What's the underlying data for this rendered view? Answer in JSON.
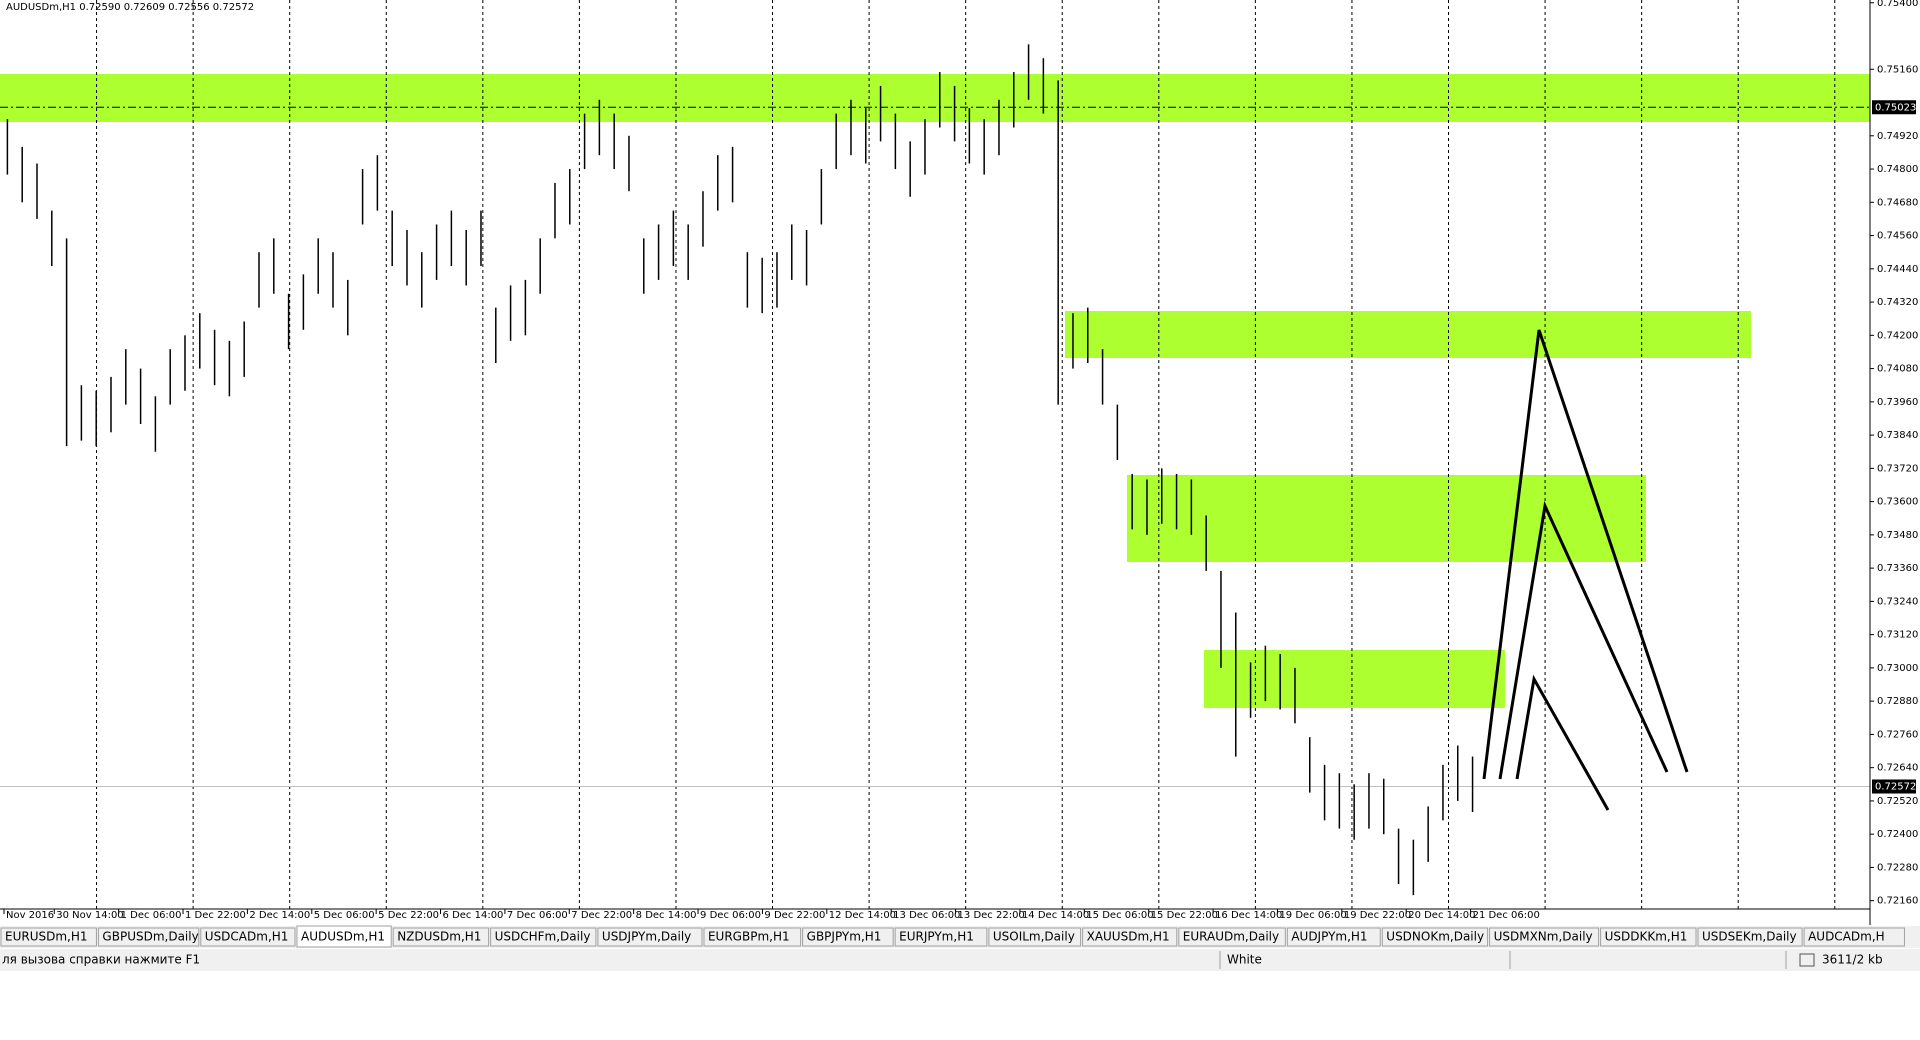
{
  "window": {
    "header": "AUDUSDm,H1  0.72590 0.72609 0.72556 0.72572",
    "tabs": [
      "EURUSDm,H1",
      "GBPUSDm,Daily",
      "USDCADm,H1",
      "AUDUSDm,H1",
      "NZDUSDm,H1",
      "USDCHFm,Daily",
      "USDJPYm,Daily",
      "EURGBPm,H1",
      "GBPJPYm,H1",
      "EURJPYm,H1",
      "USOILm,Daily",
      "XAUUSDm,H1",
      "EURAUDm,Daily",
      "AUDJPYm,H1",
      "USDNOKm,Daily",
      "USDMXNm,Daily",
      "USDDKKm,H1",
      "USDSEKm,Daily",
      "AUDCADm,H"
    ],
    "active_tab": 3,
    "status": {
      "help": "ля вызова справки нажмите F1",
      "profile": "White",
      "traffic": "3611/2 kb"
    }
  },
  "chart_data": {
    "type": "ohlc",
    "color": "#000000",
    "xtick_labels": [
      "Nov 2016",
      "30 Nov 14:00",
      "1 Dec 06:00",
      "1 Dec 22:00",
      "2 Dec 14:00",
      "5 Dec 06:00",
      "5 Dec 22:00",
      "6 Dec 14:00",
      "7 Dec 06:00",
      "7 Dec 22:00",
      "8 Dec 14:00",
      "9 Dec 06:00",
      "9 Dec 22:00",
      "12 Dec 14:00",
      "13 Dec 06:00",
      "13 Dec 22:00",
      "14 Dec 14:00",
      "15 Dec 06:00",
      "15 Dec 22:00",
      "16 Dec 14:00",
      "19 Dec 06:00",
      "19 Dec 22:00",
      "20 Dec 14:00",
      "21 Dec 06:00"
    ],
    "high": [
      0.7498,
      0.7488,
      0.7482,
      0.7465,
      0.7455,
      0.7402,
      0.74,
      0.7405,
      0.7415,
      0.7408,
      0.7398,
      0.7415,
      0.742,
      0.7428,
      0.7422,
      0.7418,
      0.7425,
      0.745,
      0.7455,
      0.7435,
      0.7442,
      0.7455,
      0.745,
      0.744,
      0.748,
      0.7485,
      0.7465,
      0.7458,
      0.745,
      0.746,
      0.7465,
      0.7458,
      0.7465,
      0.743,
      0.7438,
      0.744,
      0.7455,
      0.7475,
      0.748,
      0.75,
      0.7505,
      0.75,
      0.7492,
      0.7455,
      0.746,
      0.7465,
      0.746,
      0.7472,
      0.7485,
      0.7488,
      0.745,
      0.7448,
      0.745,
      0.746,
      0.7458,
      0.748,
      0.75,
      0.7505,
      0.7502,
      0.751,
      0.75,
      0.749,
      0.7498,
      0.7515,
      0.751,
      0.7502,
      0.7498,
      0.7505,
      0.7515,
      0.7525,
      0.752,
      0.7512,
      0.7428,
      0.743,
      0.7415,
      0.7395,
      0.737,
      0.7368,
      0.7372,
      0.737,
      0.7368,
      0.7355,
      0.7335,
      0.732,
      0.7302,
      0.7308,
      0.7305,
      0.73,
      0.7275,
      0.7265,
      0.7262,
      0.7258,
      0.7262,
      0.726,
      0.7242,
      0.7238,
      0.725,
      0.7265,
      0.7272,
      0.7268
    ],
    "low": [
      0.7478,
      0.7468,
      0.7462,
      0.7445,
      0.738,
      0.7382,
      0.738,
      0.7385,
      0.7395,
      0.7388,
      0.7378,
      0.7395,
      0.74,
      0.7408,
      0.7402,
      0.7398,
      0.7405,
      0.743,
      0.7435,
      0.7415,
      0.7422,
      0.7435,
      0.743,
      0.742,
      0.746,
      0.7465,
      0.7445,
      0.7438,
      0.743,
      0.744,
      0.7445,
      0.7438,
      0.7445,
      0.741,
      0.7418,
      0.742,
      0.7435,
      0.7455,
      0.746,
      0.748,
      0.7485,
      0.748,
      0.7472,
      0.7435,
      0.744,
      0.7445,
      0.744,
      0.7452,
      0.7465,
      0.7468,
      0.743,
      0.7428,
      0.743,
      0.744,
      0.7438,
      0.746,
      0.748,
      0.7485,
      0.7482,
      0.749,
      0.748,
      0.747,
      0.7478,
      0.7495,
      0.749,
      0.7482,
      0.7478,
      0.7485,
      0.7495,
      0.7505,
      0.75,
      0.7395,
      0.7408,
      0.741,
      0.7395,
      0.7375,
      0.735,
      0.7348,
      0.7352,
      0.735,
      0.7348,
      0.7335,
      0.73,
      0.7268,
      0.7282,
      0.7288,
      0.7285,
      0.728,
      0.7255,
      0.7245,
      0.7242,
      0.7238,
      0.7242,
      0.724,
      0.7222,
      0.7218,
      0.723,
      0.7245,
      0.7252,
      0.7248
    ],
    "ylim": [
      0.7213,
      0.7541
    ],
    "yticks": [
      {
        "value": 0.7216,
        "label": "0.72160"
      },
      {
        "value": 0.7228,
        "label": "0.72280"
      },
      {
        "value": 0.724,
        "label": "0.72400"
      },
      {
        "value": 0.7252,
        "label": "0.72520"
      },
      {
        "value": 0.7264,
        "label": "0.72640"
      },
      {
        "value": 0.7276,
        "label": "0.72760"
      },
      {
        "value": 0.7288,
        "label": "0.72880"
      },
      {
        "value": 0.73,
        "label": "0.73000"
      },
      {
        "value": 0.7312,
        "label": "0.73120"
      },
      {
        "value": 0.7324,
        "label": "0.73240"
      },
      {
        "value": 0.7336,
        "label": "0.73360"
      },
      {
        "value": 0.7348,
        "label": "0.73480"
      },
      {
        "value": 0.736,
        "label": "0.73600"
      },
      {
        "value": 0.7372,
        "label": "0.73720"
      },
      {
        "value": 0.7384,
        "label": "0.73840"
      },
      {
        "value": 0.7396,
        "label": "0.73960"
      },
      {
        "value": 0.7408,
        "label": "0.74080"
      },
      {
        "value": 0.742,
        "label": "0.74200"
      },
      {
        "value": 0.7432,
        "label": "0.74320"
      },
      {
        "value": 0.7444,
        "label": "0.74440"
      },
      {
        "value": 0.7456,
        "label": "0.74560"
      },
      {
        "value": 0.7468,
        "label": "0.74680"
      },
      {
        "value": 0.748,
        "label": "0.74800"
      },
      {
        "value": 0.7492,
        "label": "0.74920"
      },
      {
        "value": 0.7516,
        "label": "0.75160"
      },
      {
        "value": 0.754,
        "label": "0.75400"
      }
    ],
    "price_lines": [
      {
        "value": 0.75023,
        "label": "0.75023"
      },
      {
        "value": 0.72572,
        "label": "0.72572"
      }
    ]
  }
}
